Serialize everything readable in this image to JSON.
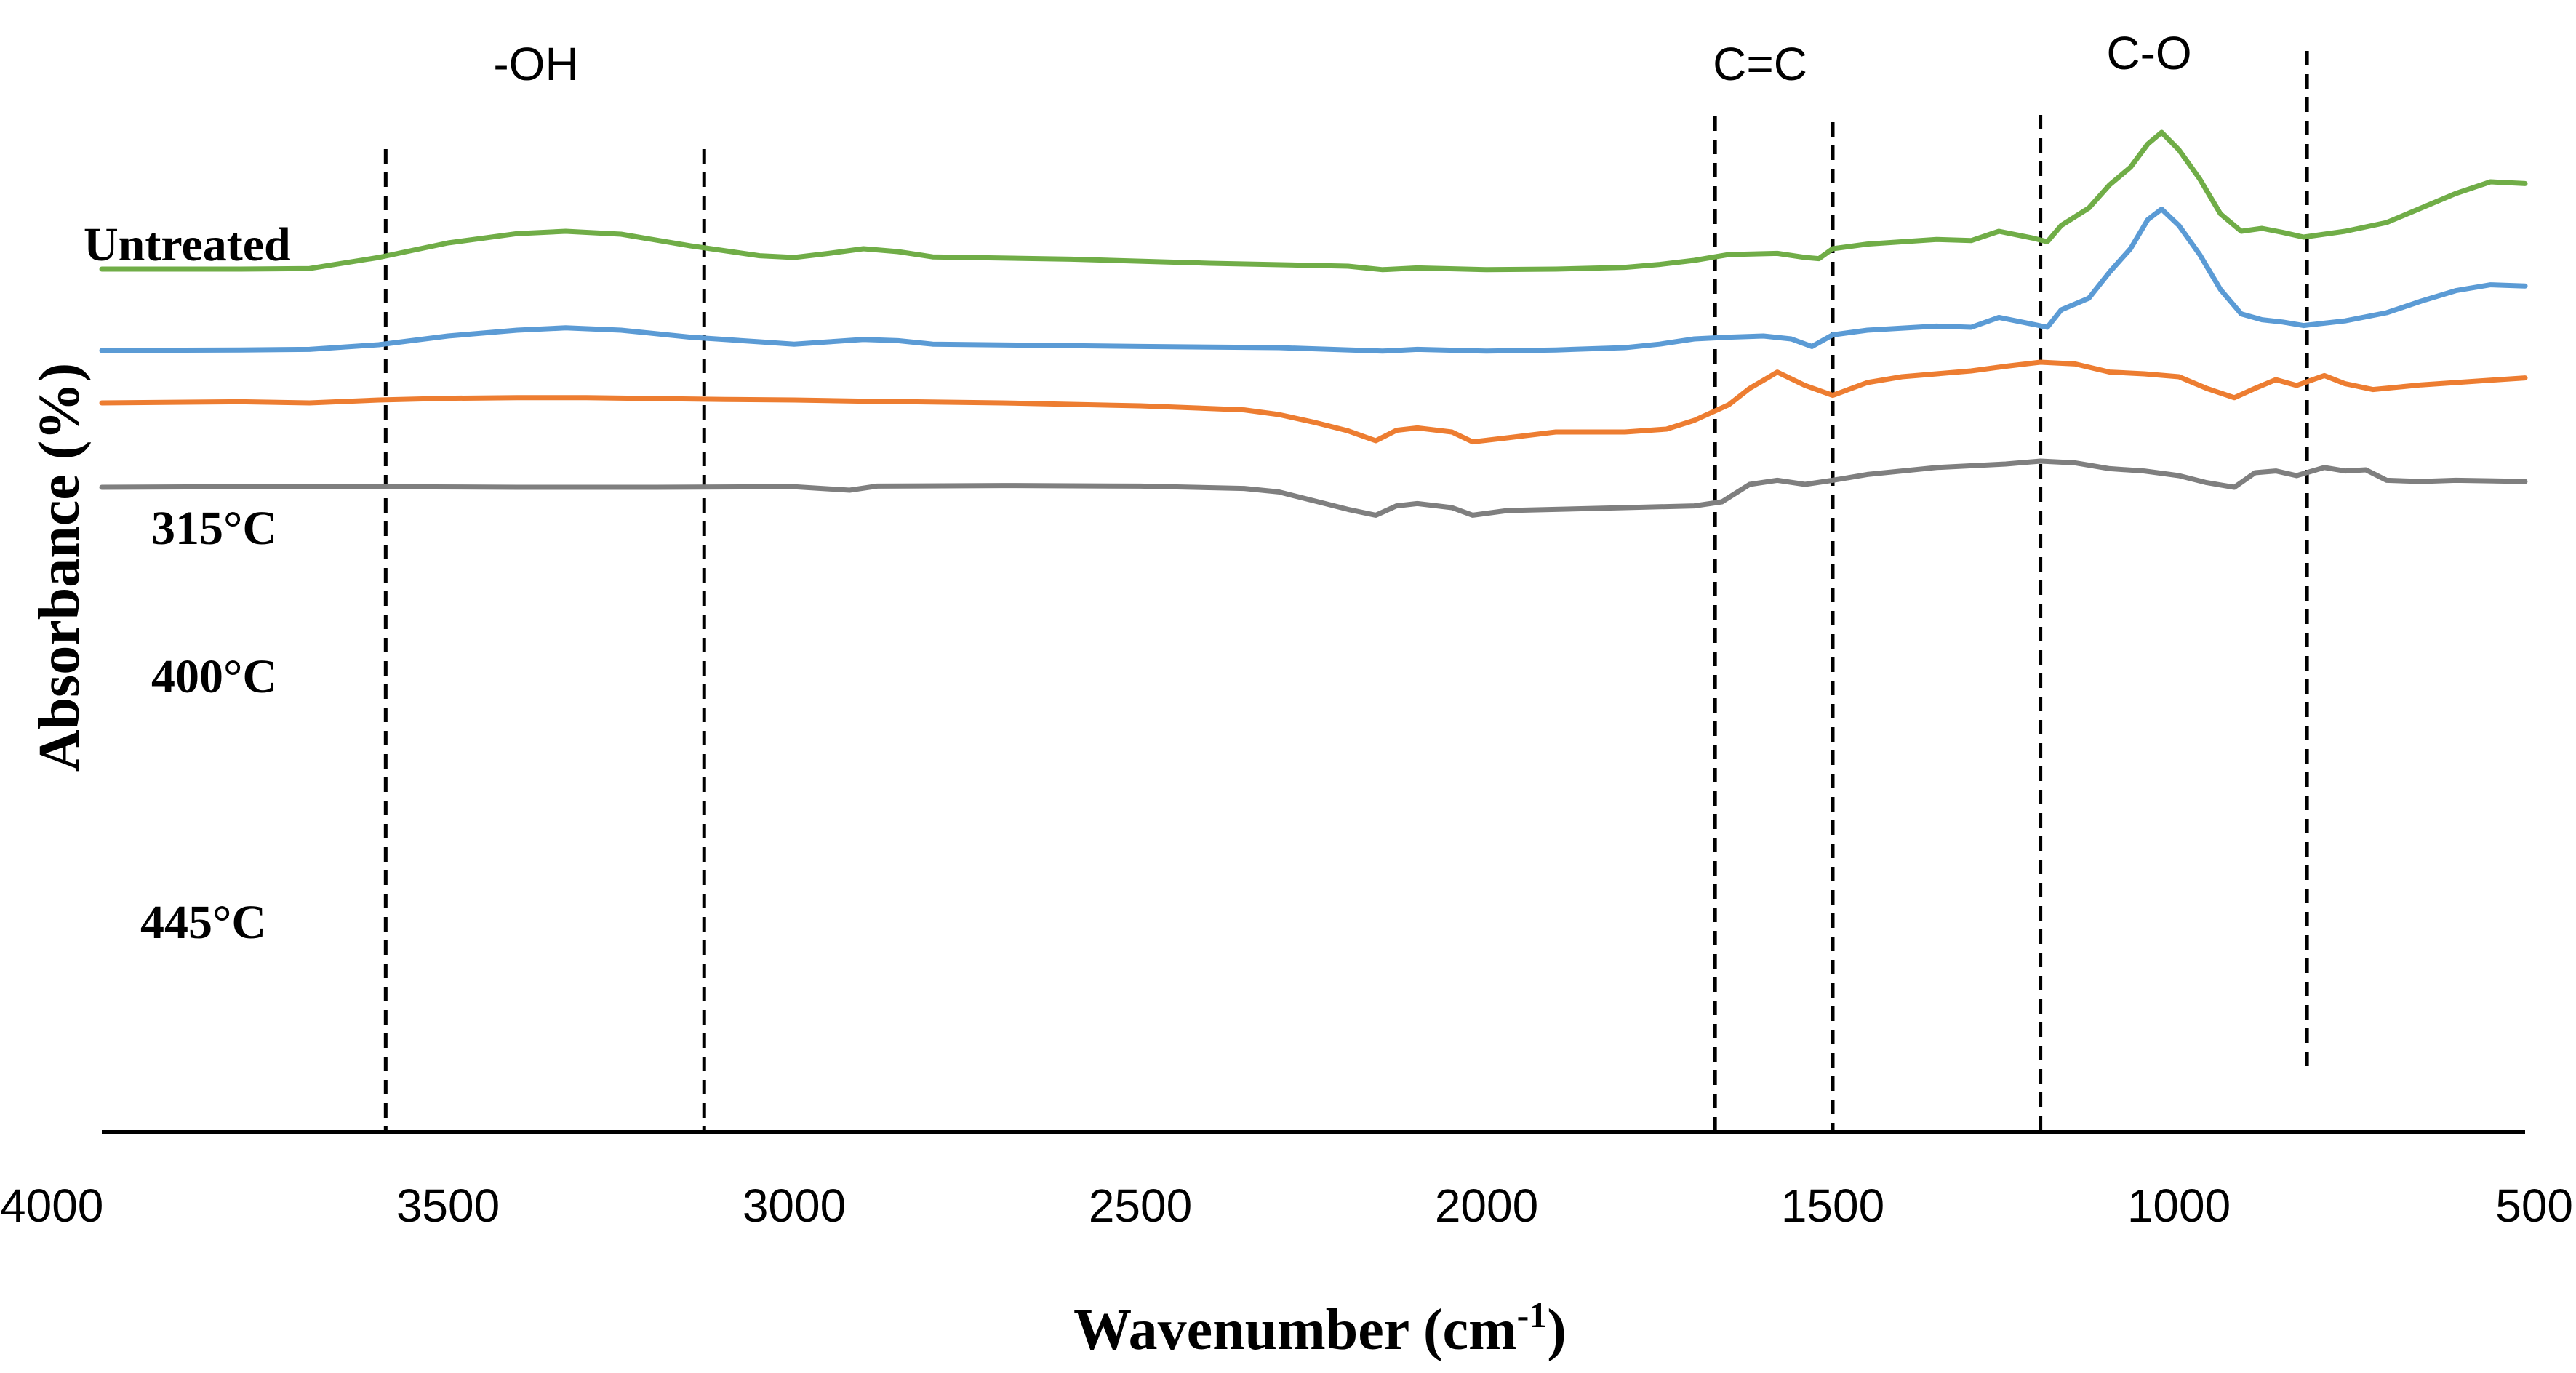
{
  "chart_data": {
    "type": "line",
    "title": "",
    "xlabel": "Wavenumber (cm",
    "xlabel_superscript": "-1",
    "xlabel_close": ")",
    "ylabel": "Absorbance (%)",
    "xlim": [
      4000,
      500
    ],
    "x_ticks": [
      4000,
      3500,
      3000,
      2500,
      2000,
      1500,
      1000,
      500
    ],
    "y_ticks_shown": false,
    "series": [
      {
        "name": "Untreated",
        "color": "#70ad47",
        "points": [
          [
            4000,
            1.25
          ],
          [
            3800,
            1.25
          ],
          [
            3700,
            1.26
          ],
          [
            3600,
            1.45
          ],
          [
            3500,
            1.7
          ],
          [
            3400,
            1.86
          ],
          [
            3330,
            1.9
          ],
          [
            3250,
            1.85
          ],
          [
            3150,
            1.65
          ],
          [
            3050,
            1.48
          ],
          [
            3000,
            1.45
          ],
          [
            2950,
            1.52
          ],
          [
            2900,
            1.6
          ],
          [
            2850,
            1.55
          ],
          [
            2800,
            1.46
          ],
          [
            2600,
            1.42
          ],
          [
            2400,
            1.35
          ],
          [
            2200,
            1.3
          ],
          [
            2150,
            1.24
          ],
          [
            2100,
            1.27
          ],
          [
            2000,
            1.24
          ],
          [
            1900,
            1.25
          ],
          [
            1800,
            1.28
          ],
          [
            1750,
            1.33
          ],
          [
            1700,
            1.4
          ],
          [
            1650,
            1.5
          ],
          [
            1580,
            1.52
          ],
          [
            1540,
            1.45
          ],
          [
            1520,
            1.43
          ],
          [
            1500,
            1.6
          ],
          [
            1450,
            1.68
          ],
          [
            1350,
            1.76
          ],
          [
            1300,
            1.74
          ],
          [
            1260,
            1.9
          ],
          [
            1210,
            1.78
          ],
          [
            1190,
            1.72
          ],
          [
            1170,
            2.0
          ],
          [
            1130,
            2.3
          ],
          [
            1100,
            2.7
          ],
          [
            1070,
            3.0
          ],
          [
            1045,
            3.4
          ],
          [
            1025,
            3.6
          ],
          [
            1000,
            3.3
          ],
          [
            970,
            2.8
          ],
          [
            940,
            2.2
          ],
          [
            910,
            1.9
          ],
          [
            880,
            1.95
          ],
          [
            850,
            1.88
          ],
          [
            820,
            1.8
          ],
          [
            790,
            1.85
          ],
          [
            760,
            1.9
          ],
          [
            700,
            2.05
          ],
          [
            650,
            2.3
          ],
          [
            600,
            2.55
          ],
          [
            550,
            2.75
          ],
          [
            500,
            2.72
          ]
        ]
      },
      {
        "name": "315°C",
        "color": "#5b9bd5",
        "points": [
          [
            4000,
            -0.15
          ],
          [
            3800,
            -0.14
          ],
          [
            3700,
            -0.13
          ],
          [
            3600,
            -0.05
          ],
          [
            3500,
            0.1
          ],
          [
            3400,
            0.2
          ],
          [
            3330,
            0.24
          ],
          [
            3250,
            0.2
          ],
          [
            3150,
            0.08
          ],
          [
            3050,
            0.0
          ],
          [
            3000,
            -0.04
          ],
          [
            2950,
            0.0
          ],
          [
            2900,
            0.04
          ],
          [
            2850,
            0.02
          ],
          [
            2800,
            -0.04
          ],
          [
            2500,
            -0.08
          ],
          [
            2300,
            -0.1
          ],
          [
            2150,
            -0.16
          ],
          [
            2100,
            -0.13
          ],
          [
            2000,
            -0.16
          ],
          [
            1900,
            -0.14
          ],
          [
            1800,
            -0.1
          ],
          [
            1750,
            -0.04
          ],
          [
            1700,
            0.05
          ],
          [
            1650,
            0.08
          ],
          [
            1600,
            0.1
          ],
          [
            1560,
            0.05
          ],
          [
            1530,
            -0.08
          ],
          [
            1500,
            0.12
          ],
          [
            1450,
            0.2
          ],
          [
            1350,
            0.27
          ],
          [
            1300,
            0.25
          ],
          [
            1260,
            0.42
          ],
          [
            1210,
            0.3
          ],
          [
            1190,
            0.25
          ],
          [
            1170,
            0.55
          ],
          [
            1130,
            0.75
          ],
          [
            1100,
            1.2
          ],
          [
            1070,
            1.6
          ],
          [
            1045,
            2.1
          ],
          [
            1025,
            2.28
          ],
          [
            1000,
            2.0
          ],
          [
            970,
            1.5
          ],
          [
            940,
            0.9
          ],
          [
            910,
            0.48
          ],
          [
            880,
            0.38
          ],
          [
            850,
            0.34
          ],
          [
            820,
            0.28
          ],
          [
            790,
            0.32
          ],
          [
            760,
            0.36
          ],
          [
            700,
            0.5
          ],
          [
            650,
            0.7
          ],
          [
            600,
            0.88
          ],
          [
            550,
            0.98
          ],
          [
            500,
            0.96
          ]
        ]
      },
      {
        "name": "400°C",
        "color": "#ed7d31",
        "points": [
          [
            4000,
            -1.05
          ],
          [
            3800,
            -1.03
          ],
          [
            3700,
            -1.05
          ],
          [
            3600,
            -1.0
          ],
          [
            3500,
            -0.97
          ],
          [
            3400,
            -0.96
          ],
          [
            3300,
            -0.96
          ],
          [
            3100,
            -0.99
          ],
          [
            3000,
            -1.0
          ],
          [
            2900,
            -1.02
          ],
          [
            2700,
            -1.05
          ],
          [
            2500,
            -1.1
          ],
          [
            2350,
            -1.17
          ],
          [
            2300,
            -1.25
          ],
          [
            2250,
            -1.38
          ],
          [
            2200,
            -1.53
          ],
          [
            2160,
            -1.7
          ],
          [
            2130,
            -1.52
          ],
          [
            2100,
            -1.48
          ],
          [
            2050,
            -1.55
          ],
          [
            2020,
            -1.72
          ],
          [
            1970,
            -1.65
          ],
          [
            1900,
            -1.55
          ],
          [
            1800,
            -1.55
          ],
          [
            1740,
            -1.5
          ],
          [
            1700,
            -1.35
          ],
          [
            1650,
            -1.08
          ],
          [
            1620,
            -0.8
          ],
          [
            1580,
            -0.52
          ],
          [
            1540,
            -0.75
          ],
          [
            1500,
            -0.92
          ],
          [
            1450,
            -0.7
          ],
          [
            1400,
            -0.6
          ],
          [
            1300,
            -0.5
          ],
          [
            1250,
            -0.42
          ],
          [
            1200,
            -0.35
          ],
          [
            1150,
            -0.38
          ],
          [
            1100,
            -0.52
          ],
          [
            1050,
            -0.55
          ],
          [
            1000,
            -0.6
          ],
          [
            960,
            -0.8
          ],
          [
            920,
            -0.96
          ],
          [
            890,
            -0.8
          ],
          [
            860,
            -0.65
          ],
          [
            830,
            -0.75
          ],
          [
            790,
            -0.58
          ],
          [
            760,
            -0.72
          ],
          [
            720,
            -0.82
          ],
          [
            650,
            -0.74
          ],
          [
            600,
            -0.7
          ],
          [
            500,
            -0.62
          ]
        ]
      },
      {
        "name": "445°C",
        "color": "#7f7f7f",
        "points": [
          [
            4000,
            -2.5
          ],
          [
            3800,
            -2.49
          ],
          [
            3600,
            -2.49
          ],
          [
            3400,
            -2.5
          ],
          [
            3200,
            -2.5
          ],
          [
            3000,
            -2.49
          ],
          [
            2920,
            -2.55
          ],
          [
            2880,
            -2.48
          ],
          [
            2700,
            -2.47
          ],
          [
            2500,
            -2.48
          ],
          [
            2350,
            -2.52
          ],
          [
            2300,
            -2.58
          ],
          [
            2250,
            -2.73
          ],
          [
            2200,
            -2.88
          ],
          [
            2160,
            -2.98
          ],
          [
            2130,
            -2.82
          ],
          [
            2100,
            -2.78
          ],
          [
            2050,
            -2.85
          ],
          [
            2020,
            -2.98
          ],
          [
            1970,
            -2.9
          ],
          [
            1900,
            -2.88
          ],
          [
            1800,
            -2.85
          ],
          [
            1700,
            -2.82
          ],
          [
            1660,
            -2.75
          ],
          [
            1620,
            -2.45
          ],
          [
            1580,
            -2.38
          ],
          [
            1540,
            -2.45
          ],
          [
            1500,
            -2.38
          ],
          [
            1450,
            -2.28
          ],
          [
            1350,
            -2.16
          ],
          [
            1250,
            -2.1
          ],
          [
            1200,
            -2.05
          ],
          [
            1150,
            -2.08
          ],
          [
            1100,
            -2.18
          ],
          [
            1050,
            -2.22
          ],
          [
            1000,
            -2.3
          ],
          [
            960,
            -2.42
          ],
          [
            920,
            -2.5
          ],
          [
            890,
            -2.25
          ],
          [
            860,
            -2.22
          ],
          [
            830,
            -2.3
          ],
          [
            790,
            -2.16
          ],
          [
            760,
            -2.22
          ],
          [
            730,
            -2.2
          ],
          [
            700,
            -2.38
          ],
          [
            650,
            -2.4
          ],
          [
            600,
            -2.38
          ],
          [
            500,
            -2.4
          ]
        ]
      }
    ],
    "reference_lines": [
      3590,
      3130,
      1670,
      1500,
      1200,
      815
    ],
    "region_labels": [
      {
        "text": "-OH",
        "x": 3375
      },
      {
        "text": "C=C",
        "x": 1575
      },
      {
        "text": "C-O",
        "x": 1005
      }
    ]
  }
}
